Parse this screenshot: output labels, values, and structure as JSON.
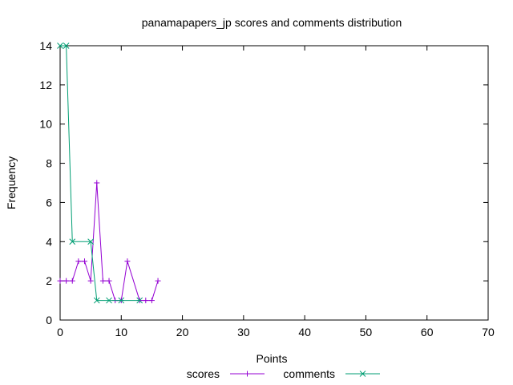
{
  "chart_data": {
    "type": "line",
    "title": "panamapapers_jp scores and comments distribution",
    "xlabel": "Points",
    "ylabel": "Frequency",
    "xlim": [
      0,
      70
    ],
    "ylim": [
      0,
      14
    ],
    "x_ticks": [
      "0",
      "10",
      "20",
      "30",
      "40",
      "50",
      "60",
      "70"
    ],
    "y_ticks": [
      "0",
      "2",
      "4",
      "6",
      "8",
      "10",
      "12",
      "14"
    ],
    "grid": false,
    "legend_position": "bottom-center",
    "series": [
      {
        "name": "scores",
        "color": "#9400d3",
        "marker": "plus",
        "points": [
          [
            0,
            2
          ],
          [
            1,
            2
          ],
          [
            2,
            2
          ],
          [
            3,
            3
          ],
          [
            4,
            3
          ],
          [
            5,
            2
          ],
          [
            6,
            7
          ],
          [
            7,
            2
          ],
          [
            8,
            2
          ],
          [
            9,
            1
          ],
          [
            10,
            1
          ],
          [
            11,
            3
          ],
          [
            13,
            1
          ],
          [
            14,
            1
          ],
          [
            15,
            1
          ],
          [
            16,
            2
          ]
        ]
      },
      {
        "name": "comments",
        "color": "#009e73",
        "marker": "cross",
        "points": [
          [
            0,
            14
          ],
          [
            1,
            14
          ],
          [
            2,
            4
          ],
          [
            5,
            4
          ],
          [
            6,
            1
          ],
          [
            8,
            1
          ],
          [
            10,
            1
          ],
          [
            13,
            1
          ]
        ]
      }
    ]
  }
}
